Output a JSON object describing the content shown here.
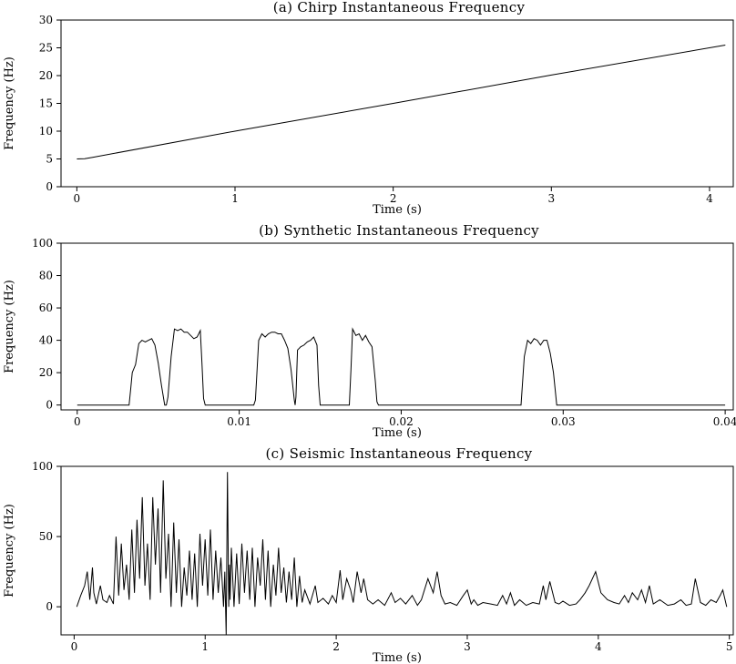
{
  "chart_data": [
    {
      "type": "line",
      "title": "(a) Chirp Instantaneous Frequency",
      "xlabel": "Time (s)",
      "ylabel": "Frequency (Hz)",
      "xlim": [
        -0.1,
        4.15
      ],
      "ylim": [
        0,
        30
      ],
      "x_ticks": [
        0,
        1,
        2,
        3,
        4
      ],
      "x_tick_labels": [
        "0",
        "1",
        "2",
        "3",
        "4"
      ],
      "y_ticks": [
        0,
        5,
        10,
        15,
        20,
        25,
        30
      ],
      "y_tick_labels": [
        "0",
        "5",
        "10",
        "15",
        "20",
        "25",
        "30"
      ],
      "series": [
        {
          "x": [
            0.0,
            0.05,
            0.1,
            1.0,
            2.0,
            3.0,
            4.1
          ],
          "y": [
            5.0,
            5.05,
            5.3,
            10.0,
            15.0,
            20.1,
            25.5
          ]
        }
      ]
    },
    {
      "type": "line",
      "title": "(b) Synthetic Instantaneous Frequency",
      "xlabel": "Time (s)",
      "ylabel": "Frequency (Hz)",
      "xlim": [
        -0.001,
        0.0405
      ],
      "ylim": [
        -3,
        100
      ],
      "x_ticks": [
        0,
        0.01,
        0.02,
        0.03,
        0.04
      ],
      "x_tick_labels": [
        "0",
        "0.01",
        "0.02",
        "0.03",
        "0.04"
      ],
      "y_ticks": [
        0,
        20,
        40,
        60,
        80,
        100
      ],
      "y_tick_labels": [
        "0",
        "20",
        "40",
        "60",
        "80",
        "100"
      ],
      "series": [
        {
          "x": [
            0,
            0.0032,
            0.0033,
            0.0034,
            0.0036,
            0.0038,
            0.004,
            0.0042,
            0.0044,
            0.0046,
            0.0048,
            0.005,
            0.0052,
            0.0054,
            0.0055,
            0.0056,
            0.0058,
            0.006,
            0.0062,
            0.0064,
            0.0066,
            0.0068,
            0.007,
            0.0072,
            0.0074,
            0.0076,
            0.0077,
            0.0078,
            0.0079,
            0.008,
            0.0109,
            0.011,
            0.0112,
            0.0114,
            0.0116,
            0.0118,
            0.012,
            0.0122,
            0.0124,
            0.0126,
            0.0128,
            0.013,
            0.0132,
            0.0134,
            0.01345,
            0.0135,
            0.0136,
            0.0138,
            0.014,
            0.0142,
            0.0144,
            0.0146,
            0.0148,
            0.0149,
            0.015,
            0.0168,
            0.0169,
            0.017,
            0.0172,
            0.0174,
            0.0176,
            0.0178,
            0.018,
            0.0182,
            0.0184,
            0.0185,
            0.0186,
            0.0274,
            0.0276,
            0.0278,
            0.028,
            0.0282,
            0.0284,
            0.0286,
            0.0288,
            0.029,
            0.0292,
            0.0294,
            0.0296,
            0.04
          ],
          "y": [
            0,
            0,
            10,
            20,
            25,
            38,
            40,
            39,
            40,
            41,
            37,
            26,
            12,
            0,
            0,
            5,
            30,
            47,
            46,
            47,
            45,
            45,
            43,
            41,
            42,
            46,
            26,
            4,
            0,
            0,
            0,
            3,
            40,
            44,
            42,
            44,
            45,
            45,
            44,
            44,
            40,
            35,
            22,
            3,
            0,
            5,
            34,
            36,
            37,
            39,
            40,
            42,
            37,
            12,
            0,
            0,
            22,
            47,
            43,
            44,
            40,
            43,
            39,
            36,
            15,
            2,
            0,
            0,
            30,
            40,
            38,
            41,
            40,
            37,
            40,
            40,
            32,
            20,
            0,
            0
          ]
        }
      ]
    },
    {
      "type": "line",
      "title": "(c) Seismic Instantaneous Frequency",
      "xlabel": "Time (s)",
      "ylabel": "Frequency (Hz)",
      "xlim": [
        -0.1,
        5.03
      ],
      "ylim": [
        -20,
        100
      ],
      "x_ticks": [
        0,
        1,
        2,
        3,
        4,
        5
      ],
      "x_tick_labels": [
        "0",
        "1",
        "2",
        "3",
        "4",
        "5"
      ],
      "y_ticks": [
        0,
        50,
        100
      ],
      "y_tick_labels": [
        "0",
        "50",
        "100"
      ],
      "series": [
        {
          "x": [
            0.02,
            0.05,
            0.08,
            0.1,
            0.12,
            0.14,
            0.15,
            0.17,
            0.2,
            0.22,
            0.25,
            0.27,
            0.3,
            0.32,
            0.34,
            0.36,
            0.38,
            0.4,
            0.42,
            0.44,
            0.46,
            0.48,
            0.5,
            0.52,
            0.54,
            0.56,
            0.58,
            0.6,
            0.62,
            0.64,
            0.66,
            0.68,
            0.7,
            0.72,
            0.74,
            0.76,
            0.78,
            0.8,
            0.82,
            0.84,
            0.86,
            0.88,
            0.9,
            0.92,
            0.94,
            0.96,
            0.98,
            1.0,
            1.02,
            1.04,
            1.06,
            1.08,
            1.1,
            1.12,
            1.14,
            1.15,
            1.16,
            1.17,
            1.18,
            1.185,
            1.19,
            1.2,
            1.22,
            1.24,
            1.26,
            1.28,
            1.3,
            1.32,
            1.34,
            1.36,
            1.38,
            1.4,
            1.42,
            1.44,
            1.46,
            1.48,
            1.5,
            1.52,
            1.54,
            1.56,
            1.58,
            1.6,
            1.62,
            1.64,
            1.66,
            1.68,
            1.7,
            1.72,
            1.74,
            1.76,
            1.8,
            1.84,
            1.86,
            1.9,
            1.94,
            1.97,
            2.0,
            2.03,
            2.05,
            2.08,
            2.11,
            2.13,
            2.16,
            2.19,
            2.21,
            2.24,
            2.28,
            2.32,
            2.37,
            2.42,
            2.45,
            2.49,
            2.53,
            2.58,
            2.62,
            2.65,
            2.7,
            2.74,
            2.77,
            2.8,
            2.83,
            2.87,
            2.92,
            2.97,
            3.0,
            3.03,
            3.05,
            3.08,
            3.12,
            3.18,
            3.23,
            3.27,
            3.3,
            3.33,
            3.36,
            3.4,
            3.45,
            3.5,
            3.55,
            3.58,
            3.6,
            3.63,
            3.67,
            3.7,
            3.73,
            3.78,
            3.83,
            3.86,
            3.9,
            3.93,
            3.98,
            4.02,
            4.07,
            4.12,
            4.16,
            4.2,
            4.23,
            4.26,
            4.3,
            4.33,
            4.36,
            4.39,
            4.42,
            4.47,
            4.53,
            4.58,
            4.63,
            4.67,
            4.71,
            4.74,
            4.78,
            4.82,
            4.86,
            4.9,
            4.93,
            4.95,
            4.98
          ],
          "y": [
            0,
            8,
            15,
            25,
            5,
            28,
            10,
            2,
            15,
            5,
            3,
            8,
            2,
            50,
            8,
            45,
            12,
            30,
            5,
            55,
            10,
            62,
            20,
            78,
            15,
            45,
            5,
            78,
            30,
            70,
            10,
            90,
            20,
            52,
            0,
            60,
            10,
            48,
            0,
            28,
            8,
            40,
            5,
            38,
            0,
            52,
            15,
            48,
            8,
            55,
            5,
            40,
            10,
            35,
            0,
            25,
            -20,
            96,
            0,
            30,
            5,
            42,
            0,
            38,
            2,
            45,
            10,
            40,
            5,
            42,
            0,
            35,
            15,
            48,
            5,
            40,
            0,
            30,
            8,
            42,
            10,
            28,
            3,
            25,
            5,
            35,
            0,
            22,
            3,
            12,
            2,
            15,
            3,
            6,
            2,
            8,
            3,
            26,
            5,
            20,
            12,
            3,
            25,
            10,
            20,
            5,
            2,
            5,
            1,
            10,
            3,
            6,
            2,
            8,
            1,
            5,
            20,
            10,
            25,
            8,
            2,
            3,
            1,
            8,
            12,
            2,
            5,
            1,
            3,
            2,
            1,
            8,
            2,
            10,
            1,
            5,
            1,
            3,
            2,
            15,
            5,
            18,
            3,
            2,
            4,
            1,
            2,
            5,
            10,
            15,
            25,
            10,
            5,
            3,
            2,
            8,
            3,
            10,
            5,
            12,
            3,
            15,
            2,
            5,
            1,
            2,
            5,
            1,
            2,
            20,
            3,
            1,
            5,
            3,
            8,
            12,
            0
          ]
        }
      ]
    }
  ]
}
